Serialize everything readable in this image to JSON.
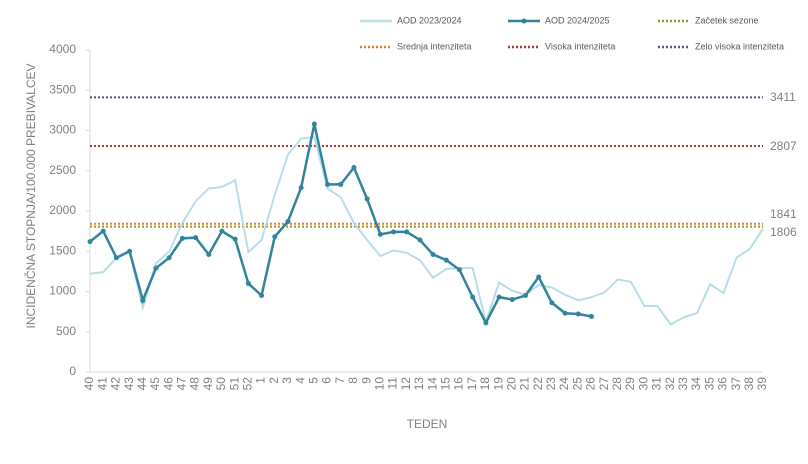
{
  "chart_data": {
    "type": "line",
    "y_label": "INCIDENČNA  STOPNJA/100.000  PREBIVALCEV",
    "x_label": "TEDEN",
    "categories": [
      "40",
      "41",
      "42",
      "43",
      "44",
      "45",
      "46",
      "47",
      "48",
      "49",
      "50",
      "51",
      "52",
      "1",
      "2",
      "3",
      "4",
      "5",
      "6",
      "7",
      "8",
      "9",
      "10",
      "11",
      "12",
      "13",
      "14",
      "15",
      "16",
      "17",
      "18",
      "19",
      "20",
      "21",
      "22",
      "23",
      "24",
      "25",
      "26",
      "27",
      "28",
      "29",
      "30",
      "31",
      "32",
      "33",
      "34",
      "35",
      "36",
      "37",
      "38",
      "39"
    ],
    "ylim": [
      0,
      4000
    ],
    "yticks": [
      0,
      500,
      1000,
      1500,
      2000,
      2500,
      3000,
      3500,
      4000
    ],
    "series": [
      {
        "name": "AOD 2023/2024",
        "color": "#b7dde8",
        "markers": false,
        "values": [
          1220,
          1240,
          1420,
          1500,
          800,
          1350,
          1500,
          1850,
          2120,
          2280,
          2300,
          2380,
          1490,
          1640,
          2200,
          2700,
          2900,
          2920,
          2280,
          2170,
          1850,
          1640,
          1440,
          1510,
          1480,
          1390,
          1170,
          1280,
          1290,
          1290,
          620,
          1110,
          1010,
          960,
          1080,
          1050,
          960,
          890,
          930,
          990,
          1150,
          1120,
          820,
          820,
          590,
          680,
          730,
          1090,
          980,
          1420,
          1530,
          1780
        ]
      },
      {
        "name": "AOD 2024/2025",
        "color": "#31849b",
        "markers": true,
        "values": [
          1620,
          1750,
          1420,
          1500,
          890,
          1290,
          1420,
          1660,
          1670,
          1460,
          1750,
          1650,
          1100,
          950,
          1680,
          1870,
          2290,
          3080,
          2330,
          2330,
          2540,
          2150,
          1710,
          1740,
          1740,
          1640,
          1460,
          1390,
          1270,
          930,
          610,
          930,
          900,
          950,
          1180,
          860,
          730,
          720,
          690,
          null,
          null,
          null,
          null,
          null,
          null,
          null,
          null,
          null,
          null,
          null,
          null,
          null
        ]
      }
    ],
    "reference_lines": [
      {
        "name": "Začetek sezone",
        "value": 1806,
        "color": "#8f9a2c"
      },
      {
        "name": "Srednja intenziteta",
        "value": 1841,
        "color": "#e3802b"
      },
      {
        "name": "Visoka intenziteta",
        "value": 2807,
        "color": "#a33a3a"
      },
      {
        "name": "Zelo visoka intenziteta",
        "value": 3411,
        "color": "#5b4c86"
      }
    ]
  }
}
